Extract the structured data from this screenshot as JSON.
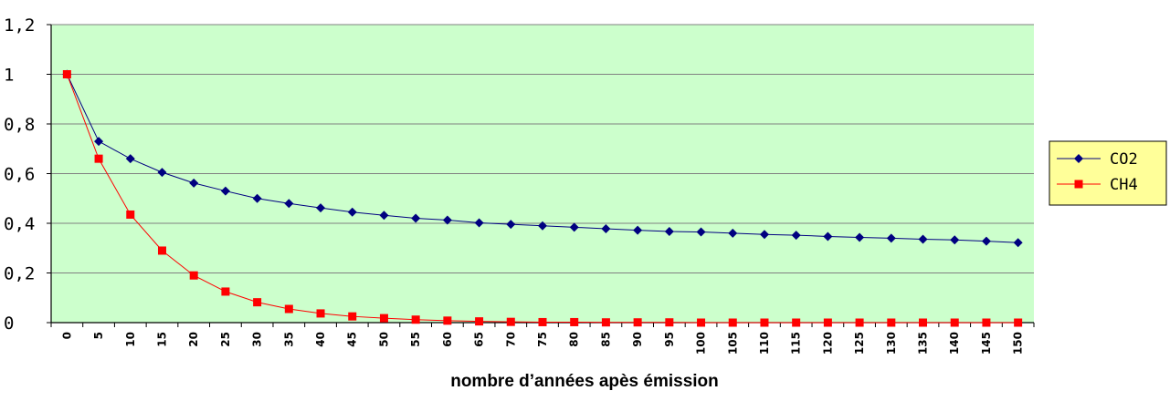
{
  "chart_data": {
    "type": "line",
    "x": [
      0,
      5,
      10,
      15,
      20,
      25,
      30,
      35,
      40,
      45,
      50,
      55,
      60,
      65,
      70,
      75,
      80,
      85,
      90,
      95,
      100,
      105,
      110,
      115,
      120,
      125,
      130,
      135,
      140,
      145,
      150
    ],
    "xlabel": "nombre d’années apès émission",
    "ylabel": "",
    "ylim": [
      0,
      1.2
    ],
    "yticks": [
      "0",
      "0,2",
      "0,4",
      "0,6",
      "0,8",
      "1",
      "1,2"
    ],
    "grid": true,
    "legend_position": "right",
    "plot_background": "#ccffcc",
    "series": [
      {
        "name": "CO2",
        "color": "#000080",
        "marker": "diamond",
        "values": [
          1.0,
          0.73,
          0.66,
          0.605,
          0.562,
          0.53,
          0.5,
          0.48,
          0.462,
          0.445,
          0.432,
          0.42,
          0.413,
          0.402,
          0.396,
          0.39,
          0.384,
          0.378,
          0.372,
          0.367,
          0.365,
          0.36,
          0.355,
          0.352,
          0.347,
          0.343,
          0.34,
          0.336,
          0.333,
          0.328,
          0.322
        ]
      },
      {
        "name": "CH4",
        "color": "#ff0000",
        "marker": "square",
        "values": [
          1.0,
          0.66,
          0.435,
          0.29,
          0.19,
          0.125,
          0.082,
          0.055,
          0.037,
          0.025,
          0.018,
          0.012,
          0.008,
          0.005,
          0.003,
          0.002,
          0.002,
          0.001,
          0.001,
          0.001,
          0,
          0,
          0,
          0,
          0,
          0,
          0,
          0,
          0,
          0,
          0
        ]
      }
    ]
  }
}
